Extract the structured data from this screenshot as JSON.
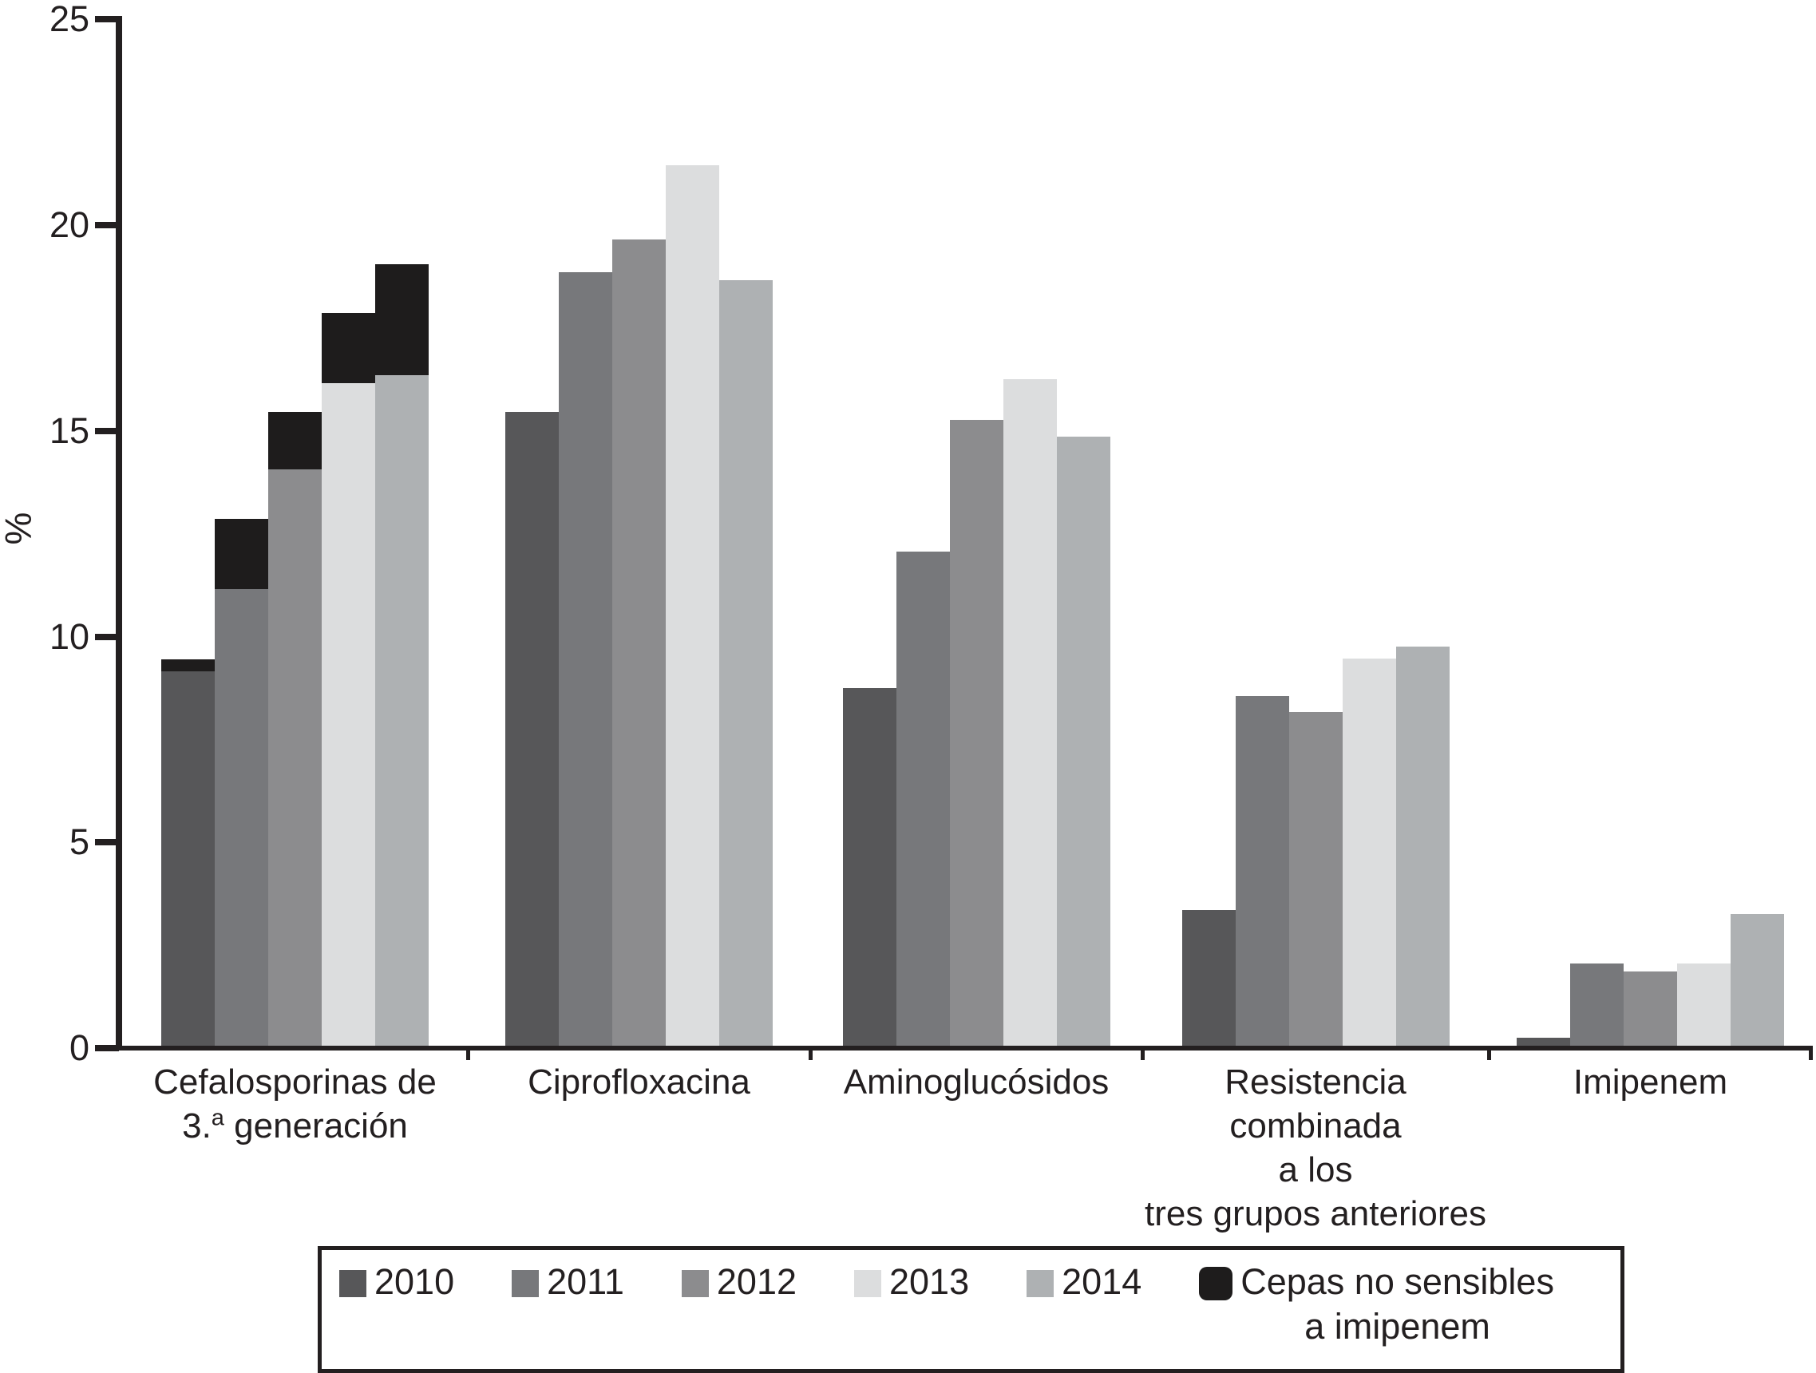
{
  "chart_data": {
    "type": "bar",
    "title": "",
    "xlabel": "",
    "ylabel": "%",
    "ylim": [
      0,
      25
    ],
    "yticks": [
      0,
      5,
      10,
      15,
      20,
      25
    ],
    "grid": false,
    "legend_position": "bottom",
    "categories": [
      {
        "id": "cefalosporinas-3a-generacion",
        "lines": [
          [
            {
              "t": "Cefalosporinas de"
            }
          ],
          [
            {
              "t": "3."
            },
            {
              "t": "a",
              "sup": true
            },
            {
              "t": " generación"
            }
          ]
        ]
      },
      {
        "id": "ciprofloxacina",
        "lines": [
          [
            {
              "t": "Ciprofloxacina"
            }
          ]
        ]
      },
      {
        "id": "aminoglucosidos",
        "lines": [
          [
            {
              "t": "Aminoglucósidos"
            }
          ]
        ]
      },
      {
        "id": "resistencia-combinada",
        "lines": [
          [
            {
              "t": "Resistencia combinada"
            }
          ],
          [
            {
              "t": "a los"
            }
          ],
          [
            {
              "t": "tres grupos anteriores"
            }
          ]
        ]
      },
      {
        "id": "imipenem",
        "lines": [
          [
            {
              "t": "Imipenem"
            }
          ]
        ]
      }
    ],
    "series": [
      {
        "name": "2010",
        "color": "#575759",
        "values": [
          9.1,
          15.4,
          8.7,
          3.3,
          0.2
        ]
      },
      {
        "name": "2011",
        "color": "#77787b",
        "values": [
          11.1,
          18.8,
          12.0,
          8.5,
          2.0
        ]
      },
      {
        "name": "2012",
        "color": "#8c8c8e",
        "values": [
          14.0,
          19.6,
          15.2,
          8.1,
          1.8
        ]
      },
      {
        "name": "2013",
        "color": "#dcddde",
        "values": [
          16.1,
          21.4,
          16.2,
          9.4,
          2.0
        ]
      },
      {
        "name": "2014",
        "color": "#aeb1b3",
        "values": [
          16.3,
          18.6,
          14.8,
          9.7,
          3.2
        ]
      }
    ],
    "stacked_overlay": {
      "name": "Cepas no sensibles a imipenem",
      "legend_lines": [
        "Cepas no sensibles",
        "a imipenem"
      ],
      "color": "#1e1c1c",
      "category_index": 0,
      "totals": [
        9.4,
        12.8,
        15.4,
        17.8,
        19.0
      ]
    }
  },
  "colors": {
    "axis": "#231f20",
    "background": "#ffffff"
  }
}
